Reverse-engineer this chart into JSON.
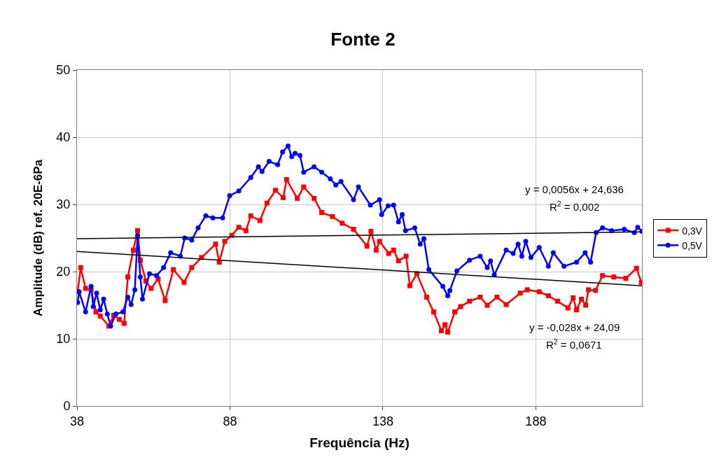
{
  "chart_data": {
    "type": "line",
    "title": "Fonte 2",
    "xlabel": "Frequência (Hz)",
    "ylabel": "Amplitude (dB) ref. 20E-6Pa",
    "xlim": [
      38,
      222.7
    ],
    "xticks": [
      38,
      88,
      138,
      188
    ],
    "ylim": [
      0,
      50
    ],
    "yticks": [
      0,
      10,
      20,
      30,
      40,
      50
    ],
    "grid": true,
    "legend": "right",
    "series": [
      {
        "name": "0,3V",
        "color": "#ff0000",
        "marker": "square",
        "x": [
          38.2,
          39.2,
          40.8,
          42.6,
          44.2,
          45.6,
          48.4,
          50.0,
          51.8,
          53.4,
          54.6,
          56.4,
          57.8,
          58.7,
          60.5,
          62.2,
          64.5,
          66.8,
          69.5,
          73.0,
          75.5,
          78.7,
          83.3,
          84.5,
          86.3,
          88.6,
          90.9,
          93.2,
          94.8,
          97.8,
          100.1,
          102.9,
          105.4,
          106.5,
          110.0,
          112.1,
          115.5,
          118.0,
          121.5,
          124.7,
          128.4,
          132.8,
          134.1,
          135.8,
          136.9,
          139.9,
          141.5,
          143.1,
          145.6,
          146.8,
          149.1,
          152.3,
          154.6,
          157.1,
          158.3,
          159.2,
          161.5,
          163.4,
          166.3,
          169.8,
          172.1,
          175.3,
          178.3,
          182.9,
          185.2,
          189.1,
          192.1,
          195.1,
          198.5,
          200.2,
          201.3,
          202.9,
          204.3,
          205.2,
          207.5,
          209.8,
          213.5,
          217.4,
          220.9,
          222.5
        ],
        "values": [
          17.0,
          20.6,
          17.5,
          17.3,
          14.0,
          13.4,
          11.9,
          13.5,
          12.9,
          12.3,
          19.2,
          23.2,
          26.1,
          21.7,
          18.6,
          17.5,
          18.9,
          15.7,
          20.3,
          18.4,
          20.6,
          22.1,
          24.1,
          21.4,
          24.5,
          25.4,
          26.6,
          26.1,
          28.3,
          27.6,
          30.2,
          32.1,
          31.0,
          33.7,
          30.9,
          32.6,
          30.9,
          28.8,
          28.2,
          27.2,
          26.3,
          23.8,
          26.0,
          23.2,
          24.5,
          22.7,
          23.2,
          21.6,
          22.3,
          17.9,
          19.7,
          16.2,
          14.0,
          11.2,
          12.1,
          11.0,
          14.0,
          14.8,
          15.6,
          16.2,
          15.0,
          16.2,
          15.1,
          16.8,
          17.3,
          17.0,
          16.4,
          15.6,
          14.6,
          16.1,
          14.3,
          15.9,
          15.0,
          17.3,
          17.2,
          19.4,
          19.2,
          19.0,
          20.5,
          18.4
        ]
      },
      {
        "name": "0,5V",
        "color": "#0000ff",
        "marker": "circle",
        "x": [
          38.2,
          38.7,
          40.8,
          42.6,
          43.3,
          44.4,
          45.6,
          46.7,
          47.9,
          49.0,
          50.7,
          53.0,
          54.6,
          55.7,
          56.9,
          57.8,
          58.7,
          59.4,
          61.7,
          64.0,
          66.3,
          68.6,
          71.8,
          73.2,
          75.5,
          77.6,
          80.1,
          82.4,
          85.6,
          87.9,
          90.9,
          94.8,
          97.3,
          98.5,
          100.8,
          103.6,
          105.2,
          107.0,
          108.2,
          109.3,
          110.9,
          112.1,
          115.5,
          118.0,
          120.8,
          122.6,
          124.3,
          128.4,
          130.0,
          133.9,
          136.9,
          137.6,
          139.7,
          141.5,
          143.1,
          144.3,
          145.4,
          148.4,
          150.2,
          151.4,
          153.0,
          157.6,
          159.2,
          159.9,
          162.2,
          166.3,
          169.8,
          172.1,
          173.2,
          174.4,
          178.3,
          180.6,
          182.2,
          183.4,
          184.7,
          186.4,
          189.1,
          192.1,
          193.7,
          197.2,
          201.3,
          204.1,
          205.9,
          207.7,
          209.8,
          212.8,
          216.9,
          220.2,
          221.3,
          222.7
        ],
        "values": [
          15.4,
          17.0,
          14.0,
          17.8,
          14.8,
          16.8,
          14.3,
          15.9,
          13.7,
          11.9,
          13.7,
          14.0,
          16.2,
          15.1,
          17.3,
          25.4,
          19.2,
          15.9,
          19.7,
          19.4,
          20.6,
          22.8,
          22.3,
          25.0,
          24.7,
          26.5,
          28.3,
          28.0,
          28.0,
          31.3,
          32.0,
          34.0,
          35.6,
          34.9,
          36.4,
          35.9,
          37.8,
          38.7,
          37.1,
          37.6,
          37.3,
          34.8,
          35.6,
          34.8,
          33.8,
          32.9,
          33.4,
          30.7,
          32.6,
          29.9,
          30.7,
          28.5,
          29.8,
          29.9,
          27.4,
          28.5,
          26.1,
          26.5,
          24.1,
          24.9,
          20.3,
          17.8,
          16.4,
          17.2,
          20.1,
          21.7,
          22.3,
          20.6,
          21.6,
          19.5,
          23.2,
          22.7,
          24.1,
          22.3,
          24.5,
          22.1,
          23.6,
          20.8,
          22.8,
          20.8,
          21.4,
          22.8,
          21.4,
          25.8,
          26.5,
          26.1,
          26.3,
          25.8,
          26.6,
          26.0
        ]
      },
      {
        "type": "line",
        "color": "#000000",
        "marker": "none",
        "x": [
          38,
          222.7
        ],
        "values": [
          24.9,
          25.9
        ]
      },
      {
        "type": "line",
        "color": "#000000",
        "marker": "none",
        "x": [
          38,
          222.7
        ],
        "values": [
          23.0,
          17.9
        ]
      }
    ],
    "annotations": [
      "y = 0,0056x + 24,636",
      "R$^{2}$ = 0,002",
      "y = -0,028x + 24,09",
      "R$^{2}$ = 0,0671"
    ]
  }
}
